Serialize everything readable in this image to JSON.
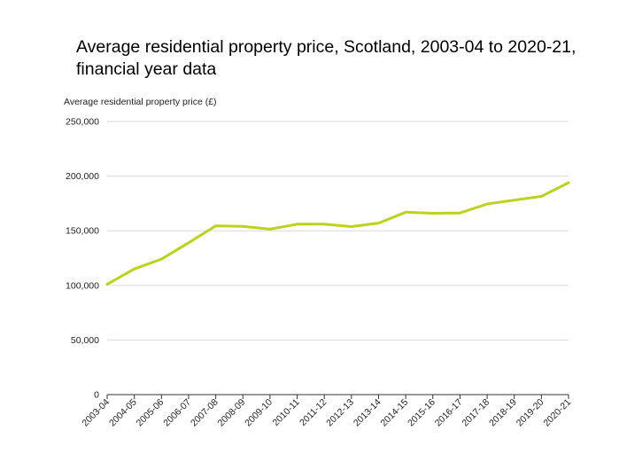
{
  "chart_data": {
    "type": "line",
    "title_lines": [
      "Average residential property price, Scotland, 2003-04 to 2020-21,",
      "financial year data"
    ],
    "ylabel": "Average residential property price (£)",
    "xlabel": "",
    "ylim": [
      0,
      250000
    ],
    "yticks": [
      0,
      50000,
      100000,
      150000,
      200000,
      250000
    ],
    "ytick_labels": [
      "0",
      "50,000",
      "100,000",
      "150,000",
      "200,000",
      "250,000"
    ],
    "grid": true,
    "legend": "none",
    "series_color": "#bcd21c",
    "categories": [
      "2003-04",
      "2004-05",
      "2005-06",
      "2006-07",
      "2007-08",
      "2008-09",
      "2009-10",
      "2010-11",
      "2011-12",
      "2012-13",
      "2013-14",
      "2014-15",
      "2015-16",
      "2016-17",
      "2017-18",
      "2018-19",
      "2019-20",
      "2020-21"
    ],
    "series": [
      {
        "values": [
          101000,
          115000,
          124000,
          139000,
          154500,
          154000,
          151500,
          156000,
          156000,
          153800,
          157000,
          167000,
          166000,
          166200,
          174500,
          178000,
          181500,
          194000
        ]
      }
    ]
  }
}
